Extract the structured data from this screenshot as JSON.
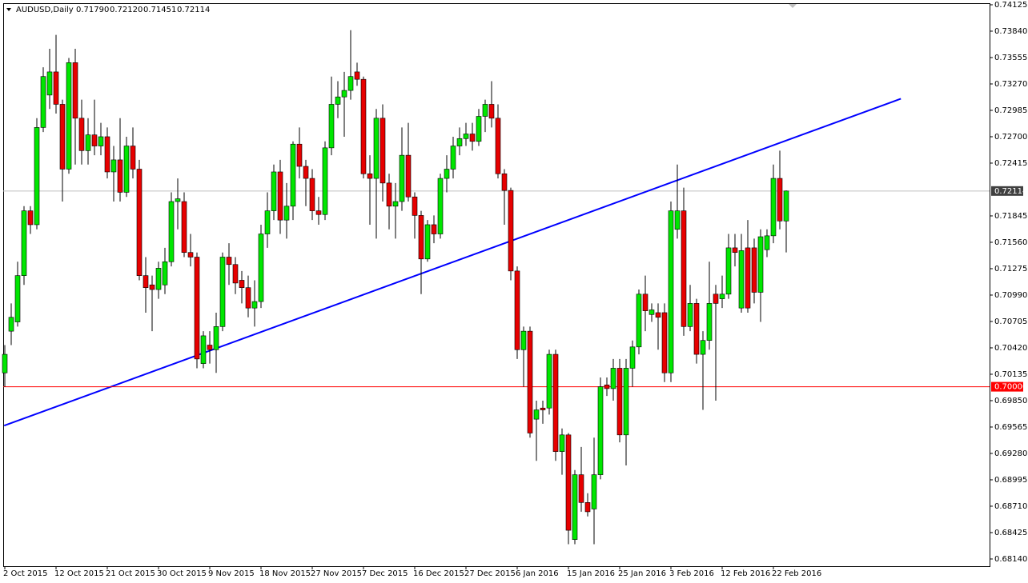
{
  "chart_data": {
    "type": "candlestick",
    "symbol": "AUDUSD,Daily",
    "quote": [
      "0.71790",
      "0.72120",
      "0.71451",
      "0.72114"
    ],
    "up_color": "#00e600",
    "down_color": "#e60000",
    "categories": [
      "2 Oct 2015",
      null,
      null,
      null,
      null,
      null,
      null,
      null,
      "12 Oct 2015",
      null,
      null,
      null,
      null,
      null,
      null,
      null,
      "21 Oct 2015",
      null,
      null,
      null,
      null,
      null,
      null,
      null,
      "30 Oct 2015",
      null,
      null,
      null,
      null,
      null,
      null,
      null,
      "9 Nov 2015",
      null,
      null,
      null,
      null,
      null,
      null,
      null,
      "18 Nov 2015",
      null,
      null,
      null,
      null,
      null,
      null,
      null,
      "27 Nov 2015",
      null,
      null,
      null,
      null,
      null,
      null,
      null,
      "7 Dec 2015",
      null,
      null,
      null,
      null,
      null,
      null,
      null,
      "16 Dec 2015",
      null,
      null,
      null,
      null,
      null,
      null,
      null,
      "27 Dec 2015",
      null,
      null,
      null,
      null,
      null,
      null,
      null,
      "6 Jan 2016",
      null,
      null,
      null,
      null,
      null,
      null,
      null,
      "15 Jan 2016",
      null,
      null,
      null,
      null,
      null,
      null,
      null,
      "25 Jan 2016",
      null,
      null,
      null,
      null,
      null,
      null,
      null,
      "3 Feb 2016",
      null,
      null,
      null,
      null,
      null,
      null,
      null,
      "12 Feb 2016",
      null,
      null,
      null,
      null,
      null,
      null,
      null,
      "22 Feb 2016",
      null,
      null
    ],
    "open": [
      0.7015,
      0.706,
      0.707,
      0.712,
      0.719,
      0.7175,
      0.728,
      0.7315,
      0.734,
      0.7305,
      0.7235,
      0.735,
      0.729,
      0.7255,
      0.7272,
      0.726,
      0.727,
      0.7232,
      0.7245,
      0.721,
      0.726,
      0.7235,
      0.712,
      0.711,
      0.7105,
      0.711,
      0.7135,
      0.72,
      0.72,
      0.7145,
      0.714,
      0.7025,
      0.7045,
      0.704,
      0.7065,
      0.714,
      0.7132,
      0.7115,
      0.7107,
      0.7085,
      0.7092,
      0.7165,
      0.719,
      0.7232,
      0.718,
      0.7195,
      0.7262,
      0.7238,
      0.7225,
      0.719,
      0.7186,
      0.7258,
      0.7305,
      0.7313,
      0.732,
      0.734,
      0.7332,
      0.723,
      0.7225,
      0.729,
      0.722,
      0.7195,
      0.72,
      0.725,
      0.7205,
      0.7185,
      0.7138,
      0.7175,
      0.7165,
      0.7225,
      0.7235,
      0.726,
      0.7268,
      0.7273,
      0.7265,
      0.7292,
      0.7305,
      0.729,
      0.723,
      0.7212,
      0.7125,
      0.704,
      0.706,
      0.6965,
      0.6977,
      0.6977,
      0.7035,
      0.693,
      0.6948,
      0.6835,
      0.6905,
      0.6875,
      0.6868,
      0.6905,
      0.7002,
      0.6998,
      0.702,
      0.6948,
      0.702,
      0.7043,
      0.71,
      0.7078,
      0.708,
      0.708,
      0.7015,
      0.717,
      0.719,
      0.7065,
      0.709,
      0.7035,
      0.705,
      0.71,
      0.7095,
      0.71,
      0.715,
      0.7085,
      0.715,
      0.715,
      0.7102,
      0.7148,
      0.7163,
      0.7225,
      0.7179
    ],
    "high": [
      0.7045,
      0.709,
      0.7135,
      0.7195,
      0.7195,
      0.729,
      0.7345,
      0.7365,
      0.738,
      0.731,
      0.7355,
      0.7365,
      0.731,
      0.729,
      0.731,
      0.7285,
      0.728,
      0.726,
      0.729,
      0.727,
      0.728,
      0.7245,
      0.714,
      0.712,
      0.7135,
      0.715,
      0.721,
      0.7225,
      0.721,
      0.7165,
      0.7145,
      0.706,
      0.706,
      0.708,
      0.7145,
      0.7155,
      0.714,
      0.7125,
      0.712,
      0.7115,
      0.7175,
      0.721,
      0.724,
      0.7245,
      0.722,
      0.7265,
      0.728,
      0.7245,
      0.7235,
      0.7205,
      0.7265,
      0.7335,
      0.733,
      0.734,
      0.7385,
      0.735,
      0.7335,
      0.725,
      0.73,
      0.7305,
      0.723,
      0.722,
      0.728,
      0.7285,
      0.721,
      0.719,
      0.718,
      0.7185,
      0.723,
      0.725,
      0.727,
      0.728,
      0.7285,
      0.7285,
      0.73,
      0.731,
      0.733,
      0.7305,
      0.7235,
      0.7215,
      0.713,
      0.7065,
      0.7065,
      0.6985,
      0.6985,
      0.704,
      0.704,
      0.6955,
      0.695,
      0.691,
      0.6935,
      0.6885,
      0.6945,
      0.701,
      0.701,
      0.703,
      0.703,
      0.703,
      0.705,
      0.7105,
      0.712,
      0.709,
      0.709,
      0.709,
      0.72,
      0.724,
      0.7215,
      0.711,
      0.7095,
      0.706,
      0.7135,
      0.711,
      0.712,
      0.7165,
      0.7165,
      0.7165,
      0.718,
      0.716,
      0.717,
      0.717,
      0.724,
      0.7255,
      0.7212
    ],
    "low": [
      0.7,
      0.7045,
      0.7065,
      0.711,
      0.7165,
      0.717,
      0.7275,
      0.73,
      0.7295,
      0.72,
      0.723,
      0.724,
      0.724,
      0.724,
      0.725,
      0.725,
      0.7225,
      0.72,
      0.72,
      0.7205,
      0.7225,
      0.7115,
      0.708,
      0.706,
      0.7095,
      0.71,
      0.713,
      0.717,
      0.714,
      0.713,
      0.702,
      0.702,
      0.7025,
      0.7015,
      0.706,
      0.711,
      0.71,
      0.709,
      0.7075,
      0.7065,
      0.7085,
      0.715,
      0.718,
      0.7165,
      0.716,
      0.718,
      0.7225,
      0.7195,
      0.718,
      0.7175,
      0.718,
      0.725,
      0.729,
      0.727,
      0.731,
      0.7325,
      0.7225,
      0.7175,
      0.716,
      0.72,
      0.717,
      0.716,
      0.719,
      0.72,
      0.716,
      0.71,
      0.7135,
      0.7155,
      0.716,
      0.721,
      0.7225,
      0.725,
      0.726,
      0.7255,
      0.726,
      0.7275,
      0.728,
      0.7225,
      0.7175,
      0.7115,
      0.703,
      0.7,
      0.6945,
      0.692,
      0.696,
      0.697,
      0.692,
      0.6905,
      0.683,
      0.683,
      0.6865,
      0.686,
      0.683,
      0.69,
      0.699,
      0.6985,
      0.694,
      0.6915,
      0.7,
      0.7035,
      0.706,
      0.707,
      0.704,
      0.7005,
      0.7005,
      0.716,
      0.7055,
      0.706,
      0.7025,
      0.6975,
      0.704,
      0.6985,
      0.7085,
      0.7095,
      0.713,
      0.708,
      0.708,
      0.709,
      0.707,
      0.714,
      0.7155,
      0.717,
      0.71451
    ],
    "close": [
      0.7035,
      0.7075,
      0.712,
      0.719,
      0.7175,
      0.728,
      0.7335,
      0.734,
      0.7305,
      0.7235,
      0.735,
      0.729,
      0.7255,
      0.7272,
      0.726,
      0.727,
      0.7232,
      0.7245,
      0.721,
      0.726,
      0.7235,
      0.712,
      0.7107,
      0.7105,
      0.7128,
      0.7135,
      0.72,
      0.7203,
      0.7145,
      0.714,
      0.703,
      0.7055,
      0.704,
      0.7065,
      0.714,
      0.7132,
      0.7112,
      0.7107,
      0.7085,
      0.7092,
      0.7165,
      0.719,
      0.7232,
      0.718,
      0.7195,
      0.7262,
      0.7238,
      0.7225,
      0.719,
      0.7186,
      0.7258,
      0.7305,
      0.7313,
      0.732,
      0.7335,
      0.7332,
      0.723,
      0.7225,
      0.729,
      0.722,
      0.7195,
      0.72,
      0.725,
      0.7205,
      0.7185,
      0.7138,
      0.7175,
      0.7165,
      0.7225,
      0.7235,
      0.726,
      0.7268,
      0.7273,
      0.7265,
      0.7292,
      0.7305,
      0.729,
      0.723,
      0.7212,
      0.7125,
      0.704,
      0.706,
      0.695,
      0.6975,
      0.6975,
      0.7035,
      0.693,
      0.6948,
      0.6845,
      0.6905,
      0.6875,
      0.6865,
      0.6905,
      0.7,
      0.6998,
      0.702,
      0.6948,
      0.702,
      0.7043,
      0.71,
      0.7082,
      0.7083,
      0.7075,
      0.7015,
      0.719,
      0.719,
      0.7065,
      0.709,
      0.7035,
      0.705,
      0.709,
      0.709,
      0.71,
      0.715,
      0.7145,
      0.7147,
      0.7085,
      0.7102,
      0.7162,
      0.7163,
      0.7225,
      0.7179,
      0.72114
    ],
    "ylim": [
      0.68062,
      0.74142
    ],
    "yticks": [
      0.74125,
      {
        "value": 0.7384,
        "label": "0.73840"
      },
      0.73555,
      {
        "value": 0.7327,
        "label": "0.73270"
      },
      0.72985,
      {
        "value": 0.727,
        "label": "0.72700"
      },
      0.72415,
      0.71845,
      {
        "value": 0.7156,
        "label": "0.71560"
      },
      0.71275,
      {
        "value": 0.7099,
        "label": "0.70990"
      },
      0.70705,
      {
        "value": 0.7042,
        "label": "0.70420"
      },
      0.70135,
      {
        "value": 0.6985,
        "label": "0.69850"
      },
      0.69565,
      {
        "value": 0.6928,
        "label": "0.69280"
      },
      0.68995,
      {
        "value": 0.6871,
        "label": "0.68710"
      },
      0.68425,
      {
        "value": 0.6814,
        "label": "0.68140"
      }
    ],
    "bid": 0.72114,
    "level": {
      "value": 0.7,
      "label": "0.70000",
      "color": "#ff0000"
    },
    "trendline": {
      "color": "#0000ff",
      "start": [
        -0.1,
        0.6958
      ],
      "end": [
        139.9,
        0.7311
      ]
    }
  }
}
